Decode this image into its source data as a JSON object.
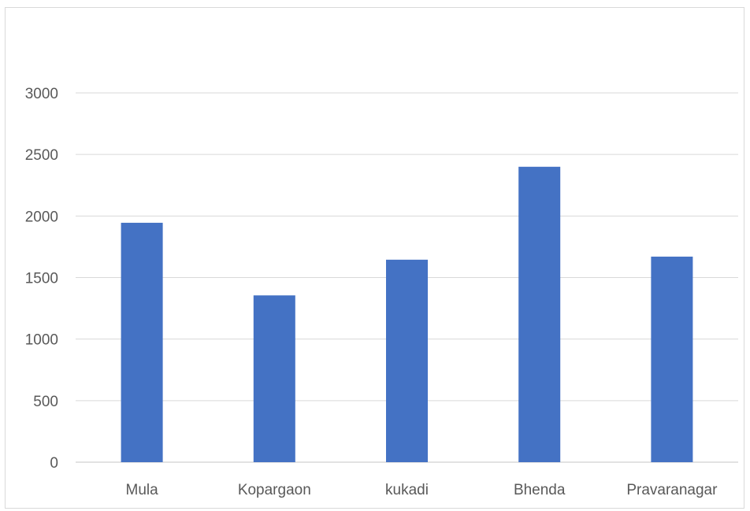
{
  "chart_data": {
    "type": "bar",
    "title": "",
    "xlabel": "",
    "ylabel": "",
    "categories": [
      "Mula",
      "Kopargaon",
      "kukadi",
      "Bhenda",
      "Pravaranagar"
    ],
    "values": [
      1945,
      1355,
      1645,
      2400,
      1670
    ],
    "ylim": [
      0,
      3000
    ],
    "yticks": [
      0,
      500,
      1000,
      1500,
      2000,
      2500,
      3000
    ],
    "grid": true,
    "legend": "none",
    "colors": {
      "bar": "#4472c4",
      "grid": "#d9d9d9",
      "text": "#595959"
    }
  }
}
